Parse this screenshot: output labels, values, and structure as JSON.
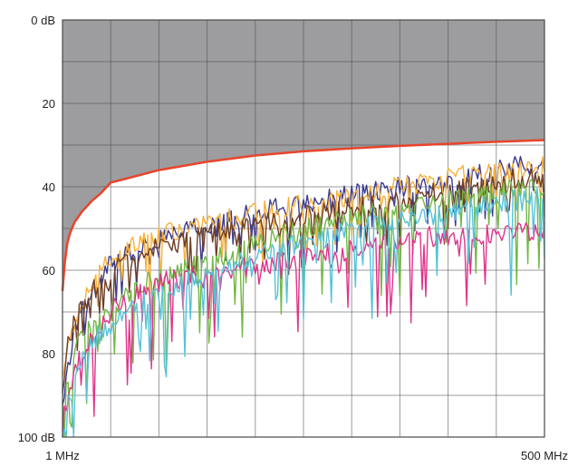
{
  "chart_data": {
    "type": "line",
    "title": "",
    "xlabel": "",
    "ylabel": "",
    "y_axis": {
      "range": [
        0,
        100
      ],
      "inverted": true,
      "unit": "dB",
      "tick_labels": [
        "0 dB",
        "20",
        "40",
        "60",
        "80",
        "100 dB"
      ],
      "grid_step": 10,
      "grid": true
    },
    "x_axis": {
      "range": [
        1,
        500
      ],
      "unit": "MHz",
      "tick_labels": [
        "1 MHz",
        "500 MHz"
      ],
      "grid_divisions": 10,
      "grid": true
    },
    "limit_line": {
      "color": "#e8442c",
      "fill_color": "#9d9c9f",
      "points": [
        [
          0,
          65
        ],
        [
          0.2,
          62
        ],
        [
          0.5,
          58
        ],
        [
          1,
          53.5
        ],
        [
          1.6,
          51
        ],
        [
          2.5,
          48.5
        ],
        [
          4,
          46
        ],
        [
          6,
          43.5
        ],
        [
          8,
          41.5
        ],
        [
          10,
          39
        ],
        [
          20,
          36
        ],
        [
          30,
          34
        ],
        [
          40,
          32.5
        ],
        [
          50,
          31.5
        ],
        [
          60,
          30.8
        ],
        [
          70,
          30.2
        ],
        [
          80,
          29.7
        ],
        [
          90,
          29.2
        ],
        [
          100,
          28.8
        ]
      ]
    },
    "series": [
      {
        "color": "#3c3b93",
        "points": [
          [
            0,
            92
          ],
          [
            1,
            84
          ],
          [
            2,
            78
          ],
          [
            3,
            72
          ],
          [
            5,
            68
          ],
          [
            7,
            64
          ],
          [
            10,
            58
          ],
          [
            13,
            56
          ],
          [
            17,
            54
          ],
          [
            20,
            53
          ],
          [
            25,
            51
          ],
          [
            30,
            49
          ],
          [
            35,
            48
          ],
          [
            40,
            46
          ],
          [
            45,
            45
          ],
          [
            50,
            44
          ],
          [
            55,
            43
          ],
          [
            60,
            42
          ],
          [
            65,
            41
          ],
          [
            70,
            40
          ],
          [
            75,
            39
          ],
          [
            80,
            38
          ],
          [
            85,
            37
          ],
          [
            90,
            36
          ],
          [
            95,
            35
          ],
          [
            100,
            35
          ]
        ]
      },
      {
        "color": "#f6b13b",
        "points": [
          [
            0,
            88
          ],
          [
            1,
            80
          ],
          [
            2,
            74
          ],
          [
            3,
            70
          ],
          [
            5,
            66
          ],
          [
            7,
            62
          ],
          [
            10,
            57
          ],
          [
            13,
            55
          ],
          [
            17,
            53
          ],
          [
            20,
            52
          ],
          [
            25,
            50
          ],
          [
            30,
            49
          ],
          [
            35,
            47
          ],
          [
            40,
            46
          ],
          [
            45,
            45
          ],
          [
            50,
            44
          ],
          [
            55,
            43
          ],
          [
            60,
            42
          ],
          [
            65,
            41
          ],
          [
            70,
            40
          ],
          [
            75,
            39
          ],
          [
            80,
            38
          ],
          [
            85,
            37
          ],
          [
            90,
            36
          ],
          [
            95,
            36
          ],
          [
            100,
            35
          ]
        ]
      },
      {
        "color": "#6e3d24",
        "points": [
          [
            0,
            90
          ],
          [
            0.5,
            82
          ],
          [
            1,
            78
          ],
          [
            2,
            74
          ],
          [
            3,
            71
          ],
          [
            5,
            67
          ],
          [
            7,
            64
          ],
          [
            10,
            61
          ],
          [
            13,
            58
          ],
          [
            17,
            56
          ],
          [
            20,
            54
          ],
          [
            25,
            53
          ],
          [
            30,
            51
          ],
          [
            35,
            50
          ],
          [
            40,
            49
          ],
          [
            45,
            48
          ],
          [
            50,
            47
          ],
          [
            55,
            46
          ],
          [
            60,
            45
          ],
          [
            65,
            44
          ],
          [
            70,
            43
          ],
          [
            75,
            42
          ],
          [
            80,
            41
          ],
          [
            85,
            40
          ],
          [
            90,
            39
          ],
          [
            95,
            38
          ],
          [
            100,
            38
          ]
        ]
      },
      {
        "color": "#72b844",
        "points": [
          [
            0,
            90
          ],
          [
            1,
            86
          ],
          [
            2,
            82
          ],
          [
            3,
            78
          ],
          [
            5,
            75
          ],
          [
            7,
            72
          ],
          [
            10,
            70
          ],
          [
            13,
            66
          ],
          [
            17,
            63
          ],
          [
            20,
            62
          ],
          [
            25,
            60
          ],
          [
            30,
            58
          ],
          [
            35,
            56
          ],
          [
            40,
            54
          ],
          [
            45,
            52
          ],
          [
            50,
            50
          ],
          [
            55,
            48
          ],
          [
            60,
            47
          ],
          [
            65,
            46
          ],
          [
            70,
            45
          ],
          [
            75,
            44
          ],
          [
            80,
            43
          ],
          [
            85,
            42
          ],
          [
            90,
            41
          ],
          [
            95,
            40
          ],
          [
            100,
            40
          ]
        ]
      },
      {
        "color": "#e0338b",
        "points": [
          [
            0,
            95
          ],
          [
            1,
            90
          ],
          [
            2,
            86
          ],
          [
            3,
            82
          ],
          [
            5,
            78
          ],
          [
            7,
            74
          ],
          [
            10,
            70
          ],
          [
            13,
            67
          ],
          [
            17,
            65
          ],
          [
            20,
            63
          ],
          [
            25,
            62
          ],
          [
            30,
            61
          ],
          [
            35,
            60
          ],
          [
            40,
            59
          ],
          [
            45,
            58
          ],
          [
            50,
            57
          ],
          [
            55,
            56
          ],
          [
            60,
            55
          ],
          [
            65,
            54
          ],
          [
            70,
            53
          ],
          [
            75,
            52
          ],
          [
            80,
            52
          ],
          [
            85,
            52
          ],
          [
            90,
            51
          ],
          [
            95,
            51
          ],
          [
            100,
            51
          ]
        ]
      },
      {
        "color": "#56c2d8",
        "points": [
          [
            0,
            98
          ],
          [
            1,
            92
          ],
          [
            2,
            88
          ],
          [
            3,
            84
          ],
          [
            5,
            80
          ],
          [
            7,
            76
          ],
          [
            10,
            73
          ],
          [
            13,
            70
          ],
          [
            17,
            67
          ],
          [
            20,
            65
          ],
          [
            25,
            63
          ],
          [
            30,
            61
          ],
          [
            35,
            59
          ],
          [
            40,
            57
          ],
          [
            45,
            55
          ],
          [
            50,
            53
          ],
          [
            55,
            52
          ],
          [
            60,
            50
          ],
          [
            65,
            49
          ],
          [
            70,
            48
          ],
          [
            75,
            47
          ],
          [
            80,
            46
          ],
          [
            85,
            45
          ],
          [
            90,
            44
          ],
          [
            95,
            43
          ],
          [
            100,
            42
          ]
        ]
      }
    ]
  }
}
